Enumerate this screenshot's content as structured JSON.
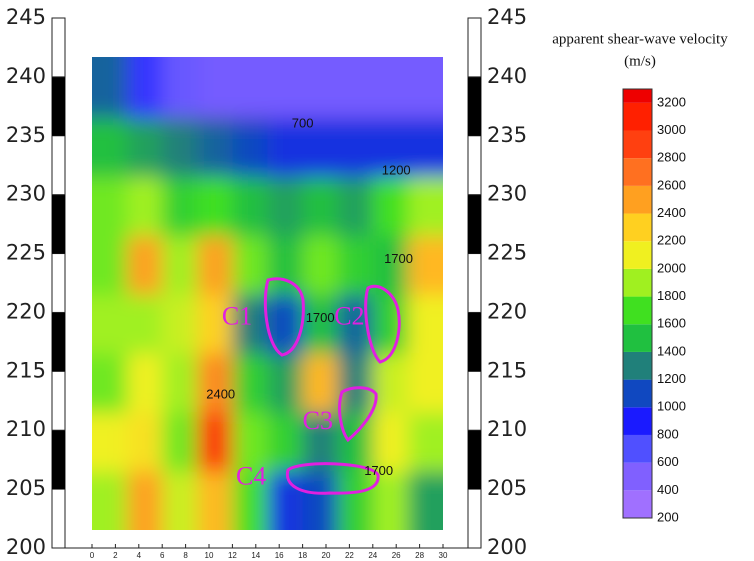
{
  "chart_data": {
    "type": "heatmap",
    "xlim": [
      0,
      30
    ],
    "xticks": [
      0,
      2,
      4,
      6,
      8,
      10,
      12,
      14,
      16,
      18,
      20,
      22,
      24,
      26,
      28,
      30
    ],
    "ylim": [
      200,
      245
    ],
    "yticks": [
      200,
      205,
      210,
      215,
      220,
      225,
      230,
      235,
      240,
      245
    ],
    "field_xlim": [
      0,
      30
    ],
    "field_ylim": [
      201.5,
      241.5
    ],
    "values": [
      [
        1100,
        700,
        500,
        450,
        450,
        450,
        450,
        450,
        450,
        450
      ],
      [
        1400,
        1300,
        1200,
        1100,
        1000,
        900,
        900,
        900,
        900,
        900
      ],
      [
        1700,
        1800,
        1500,
        1600,
        1400,
        1300,
        1400,
        1300,
        1600,
        1800
      ],
      [
        1700,
        2400,
        1800,
        2400,
        1700,
        1400,
        1700,
        1500,
        1400,
        2300
      ],
      [
        1800,
        1800,
        1900,
        2200,
        1200,
        1000,
        1400,
        1100,
        1500,
        2000
      ],
      [
        1700,
        2000,
        1800,
        2500,
        1500,
        1300,
        2300,
        1200,
        1900,
        2000
      ],
      [
        2000,
        2100,
        1700,
        2900,
        1700,
        1500,
        1200,
        1400,
        2000,
        1800
      ],
      [
        1800,
        2400,
        1900,
        2300,
        1600,
        900,
        1000,
        1500,
        1800,
        1300
      ]
    ],
    "colorbar": {
      "title": [
        "apparent shear-wave velocity",
        "(m/s)"
      ],
      "lim": [
        200,
        3300
      ],
      "ticks": [
        200,
        400,
        600,
        800,
        1000,
        1200,
        1400,
        1600,
        1800,
        2000,
        2200,
        2400,
        2600,
        2800,
        3000,
        3200
      ],
      "colors": [
        "#a070ff",
        "#8060ff",
        "#5050ff",
        "#1a1aff",
        "#1048c0",
        "#20807a",
        "#20c040",
        "#40e020",
        "#a0f020",
        "#f0f020",
        "#ffd020",
        "#ffa020",
        "#ff7020",
        "#ff4010",
        "#ff2000",
        "#ee0000"
      ]
    },
    "annotations": [
      {
        "text": "700",
        "x": 18,
        "y": 236
      },
      {
        "text": "1200",
        "x": 26,
        "y": 232
      },
      {
        "text": "1700",
        "x": 26.2,
        "y": 224.5
      },
      {
        "text": "1700",
        "x": 19.5,
        "y": 219.5
      },
      {
        "text": "1700",
        "x": 24.5,
        "y": 206.5
      },
      {
        "text": "2400",
        "x": 11,
        "y": 213
      }
    ],
    "cavities": [
      {
        "label": "C1",
        "x": 12.4,
        "y": 219.5
      },
      {
        "label": "C2",
        "x": 22,
        "y": 219.5
      },
      {
        "label": "C3",
        "x": 19.3,
        "y": 210.6
      },
      {
        "label": "C4",
        "x": 13.6,
        "y": 205.9
      }
    ]
  }
}
